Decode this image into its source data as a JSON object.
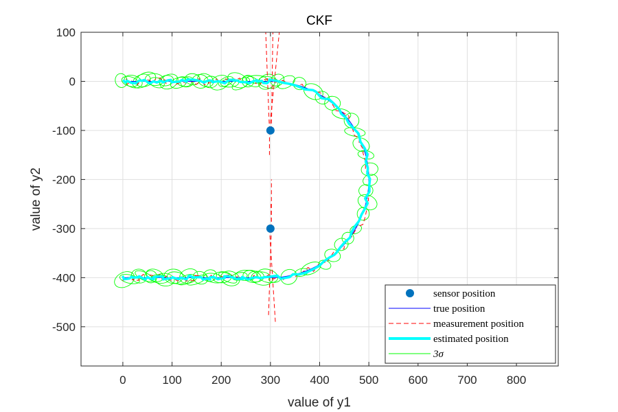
{
  "chart_data": {
    "type": "line",
    "title": "CKF",
    "xlabel": "value of y1",
    "ylabel": "value of y2",
    "xlim": [
      -85,
      885
    ],
    "ylim": [
      -580,
      100
    ],
    "xticks": [
      0,
      100,
      200,
      300,
      400,
      500,
      600,
      700,
      800
    ],
    "yticks": [
      100,
      0,
      -100,
      -200,
      -300,
      -400,
      -500
    ],
    "xtick_labels": [
      "0",
      "100",
      "200",
      "300",
      "400",
      "500",
      "600",
      "700",
      "800"
    ],
    "ytick_labels": [
      "100",
      "0",
      "-100",
      "-200",
      "-300",
      "-400",
      "-500"
    ],
    "grid": true,
    "legend_position": "bottom-right",
    "colors": {
      "sensor": "#0072BD",
      "true": "#0000ff",
      "measurement": "#ff0000",
      "estimated": "#00ffff",
      "sigma": "#00ff00"
    },
    "sensors": [
      {
        "x": 300,
        "y": -100
      },
      {
        "x": 300,
        "y": -300
      }
    ],
    "series": [
      {
        "name": "sensor position",
        "style": "marker"
      },
      {
        "name": "true position",
        "style": "line"
      },
      {
        "name": "measurement position",
        "style": "dashed"
      },
      {
        "name": "estimated position",
        "style": "thick"
      },
      {
        "name": "3σ",
        "style": "ellipse"
      }
    ]
  }
}
